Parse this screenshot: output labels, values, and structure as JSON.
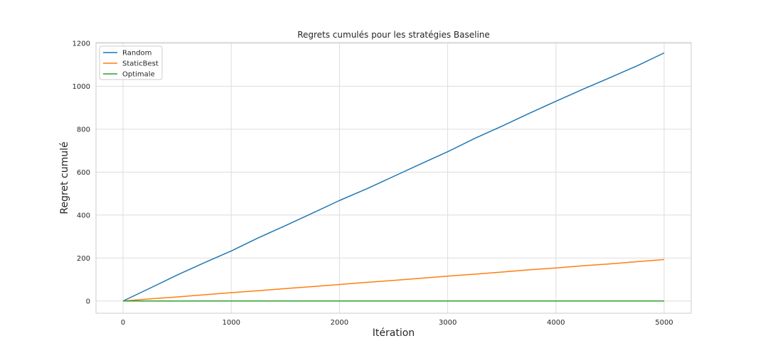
{
  "chart_data": {
    "type": "line",
    "title": "Regrets cumulés pour les stratégies Baseline",
    "xlabel": "Itération",
    "ylabel": "Regret cumulé",
    "xlim": [
      -250,
      5250
    ],
    "ylim": [
      -57,
      1203
    ],
    "xticks": [
      0,
      1000,
      2000,
      3000,
      4000,
      5000
    ],
    "yticks": [
      0,
      200,
      400,
      600,
      800,
      1000,
      1200
    ],
    "grid": true,
    "legend_position": "upper left",
    "series": [
      {
        "name": "Random",
        "color": "#1f77b4",
        "x": [
          0,
          250,
          500,
          750,
          1000,
          1250,
          1500,
          1750,
          2000,
          2250,
          2500,
          2750,
          3000,
          3250,
          3500,
          3750,
          4000,
          4250,
          4500,
          4750,
          5000
        ],
        "y": [
          0,
          60,
          121,
          178,
          233,
          294,
          351,
          409,
          468,
          522,
          580,
          638,
          695,
          757,
          814,
          873,
          930,
          986,
          1040,
          1095,
          1155
        ]
      },
      {
        "name": "StaticBest",
        "color": "#ff7f0e",
        "x": [
          0,
          250,
          500,
          750,
          1000,
          1250,
          1500,
          1750,
          2000,
          2250,
          2500,
          2750,
          3000,
          3250,
          3500,
          3750,
          4000,
          4250,
          4500,
          4750,
          5000
        ],
        "y": [
          0,
          10,
          19,
          29,
          39,
          48,
          58,
          67,
          77,
          87,
          96,
          106,
          116,
          125,
          135,
          145,
          154,
          164,
          173,
          183,
          193
        ]
      },
      {
        "name": "Optimale",
        "color": "#2ca02c",
        "x": [
          0,
          5000
        ],
        "y": [
          0,
          0
        ]
      }
    ]
  }
}
